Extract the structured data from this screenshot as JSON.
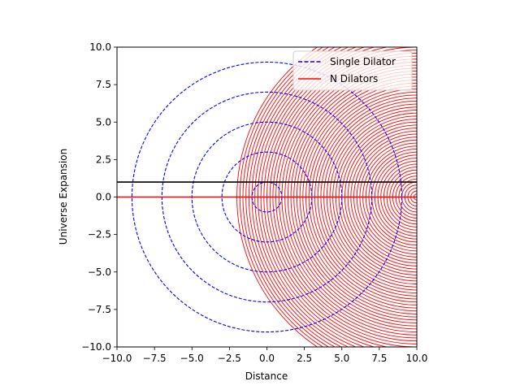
{
  "chart_data": {
    "type": "line",
    "title": "",
    "xlabel": "Distance",
    "ylabel": "Universe Expansion",
    "xlim": [
      -10,
      10
    ],
    "ylim": [
      -10,
      10
    ],
    "x_ticks": [
      -10,
      -7.5,
      -5,
      -2.5,
      0,
      2.5,
      5,
      7.5,
      10
    ],
    "y_ticks": [
      -10,
      -7.5,
      -5,
      -2.5,
      0,
      2.5,
      5,
      7.5,
      10
    ],
    "x_tick_labels": [
      "−10.0",
      "−7.5",
      "−5.0",
      "−2.5",
      "0.0",
      "2.5",
      "5.0",
      "7.5",
      "10.0"
    ],
    "y_tick_labels": [
      "−10.0",
      "−7.5",
      "−5.0",
      "−2.5",
      "0.0",
      "2.5",
      "5.0",
      "7.5",
      "10.0"
    ],
    "grid": false,
    "legend_position": "top-right",
    "legend": [
      {
        "label": "Single Dilator",
        "color": "#0000ff",
        "style": "dashed"
      },
      {
        "label": "N Dilators",
        "color": "#ff0000",
        "style": "solid"
      }
    ],
    "series": [
      {
        "name": "Single Dilator",
        "color": "#0000ff",
        "style": "dashed",
        "shape": "concentric circles",
        "center": [
          0,
          0
        ],
        "radii": [
          1,
          3,
          5,
          7,
          9
        ]
      },
      {
        "name": "N Dilators",
        "color": "#ff0000",
        "style": "solid",
        "shape": "concentric circles",
        "center": [
          10,
          0
        ],
        "radii_start": 0.2,
        "radii_end": 12,
        "radii_step": 0.2
      }
    ],
    "reference_lines": [
      {
        "orientation": "horizontal",
        "y": 1,
        "color": "#000000"
      },
      {
        "orientation": "horizontal",
        "y": 0,
        "color": "#ff0000"
      }
    ]
  }
}
